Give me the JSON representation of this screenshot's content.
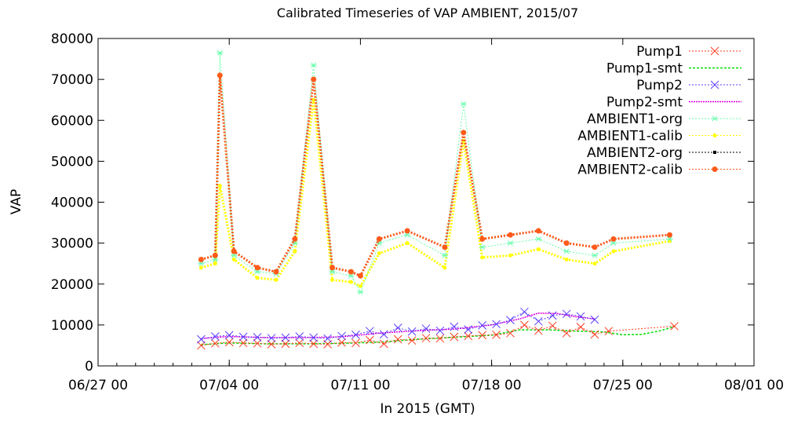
{
  "chart_data": {
    "type": "line",
    "title": "Calibrated Timeseries of VAP AMBIENT, 2015/07",
    "xlabel": "In 2015 (GMT)",
    "ylabel": "VAP",
    "x_range": [
      "2015-06-27 00:00",
      "2015-08-01 00:00"
    ],
    "ylim": [
      0,
      80000
    ],
    "x_ticks": [
      "06/27 00",
      "07/04 00",
      "07/11 00",
      "07/18 00",
      "07/25 00",
      "08/01 00"
    ],
    "y_ticks": [
      "0",
      "10000",
      "20000",
      "30000",
      "40000",
      "50000",
      "60000",
      "70000",
      "80000"
    ],
    "grid": false,
    "legend_position": "top-right",
    "colors": {
      "pump1": "#ff3a1f",
      "pump1_smt": "#00dd00",
      "pump2": "#5a3cff",
      "pump2_smt": "#e000e0",
      "ambient1_org": "#66ffaa",
      "ambient1_calib": "#ffff00",
      "ambient2_org": "#000000",
      "ambient2_calib": "#ff5a1a"
    },
    "series": [
      {
        "name": "Pump1",
        "x": [
          "2015-07-02 12:00",
          "2015-07-03 06:00",
          "2015-07-04 00:00",
          "2015-07-04 18:00",
          "2015-07-05 12:00",
          "2015-07-06 06:00",
          "2015-07-07 00:00",
          "2015-07-07 18:00",
          "2015-07-08 12:00",
          "2015-07-09 06:00",
          "2015-07-10 00:00",
          "2015-07-10 18:00",
          "2015-07-11 12:00",
          "2015-07-12 06:00",
          "2015-07-13 00:00",
          "2015-07-13 18:00",
          "2015-07-14 12:00",
          "2015-07-15 06:00",
          "2015-07-16 00:00",
          "2015-07-16 18:00",
          "2015-07-17 12:00",
          "2015-07-18 06:00",
          "2015-07-19 00:00",
          "2015-07-19 18:00",
          "2015-07-20 12:00",
          "2015-07-21 06:00",
          "2015-07-22 00:00",
          "2015-07-22 18:00",
          "2015-07-23 12:00",
          "2015-07-24 06:00",
          "2015-07-27 18:00"
        ],
        "y": [
          5000,
          5500,
          5800,
          5600,
          5500,
          5300,
          5400,
          5600,
          5400,
          5300,
          5700,
          5600,
          6300,
          5400,
          6500,
          6200,
          6800,
          6700,
          7100,
          7300,
          7500,
          7600,
          8000,
          10000,
          8600,
          9800,
          8000,
          9500,
          7700,
          8500,
          9700
        ]
      },
      {
        "name": "Pump1-smt",
        "x": [
          "2015-07-02 12:00",
          "2015-07-04 00:00",
          "2015-07-06 00:00",
          "2015-07-08 00:00",
          "2015-07-10 00:00",
          "2015-07-12 00:00",
          "2015-07-14 00:00",
          "2015-07-16 00:00",
          "2015-07-18 00:00",
          "2015-07-19 12:00",
          "2015-07-21 00:00",
          "2015-07-22 12:00",
          "2015-07-24 00:00",
          "2015-07-25 00:00",
          "2015-07-26 00:00",
          "2015-07-27 00:00",
          "2015-07-27 18:00"
        ],
        "y": [
          5200,
          5600,
          5400,
          5400,
          5500,
          5800,
          6500,
          7000,
          7500,
          8800,
          8800,
          8500,
          8300,
          7600,
          7700,
          8600,
          9600
        ]
      },
      {
        "name": "Pump2",
        "x": [
          "2015-07-02 12:00",
          "2015-07-03 06:00",
          "2015-07-04 00:00",
          "2015-07-04 18:00",
          "2015-07-05 12:00",
          "2015-07-06 06:00",
          "2015-07-07 00:00",
          "2015-07-07 18:00",
          "2015-07-08 12:00",
          "2015-07-09 06:00",
          "2015-07-10 00:00",
          "2015-07-10 18:00",
          "2015-07-11 12:00",
          "2015-07-12 06:00",
          "2015-07-13 00:00",
          "2015-07-13 18:00",
          "2015-07-14 12:00",
          "2015-07-15 06:00",
          "2015-07-16 00:00",
          "2015-07-16 18:00",
          "2015-07-17 12:00",
          "2015-07-18 06:00",
          "2015-07-19 00:00",
          "2015-07-19 18:00",
          "2015-07-20 12:00",
          "2015-07-21 06:00",
          "2015-07-22 00:00",
          "2015-07-22 18:00",
          "2015-07-23 12:00"
        ],
        "y": [
          6500,
          7200,
          7500,
          7100,
          7000,
          6800,
          6900,
          7200,
          6900,
          6700,
          7300,
          7600,
          8500,
          7700,
          9300,
          8400,
          9100,
          8600,
          9600,
          8900,
          9900,
          10200,
          11200,
          13200,
          10900,
          12300,
          12700,
          12100,
          11300
        ]
      },
      {
        "name": "Pump2-smt",
        "x": [
          "2015-07-02 12:00",
          "2015-07-04 00:00",
          "2015-07-06 00:00",
          "2015-07-08 00:00",
          "2015-07-10 00:00",
          "2015-07-12 00:00",
          "2015-07-14 00:00",
          "2015-07-16 00:00",
          "2015-07-18 00:00",
          "2015-07-19 12:00",
          "2015-07-20 12:00",
          "2015-07-21 12:00",
          "2015-07-22 12:00",
          "2015-07-23 12:00"
        ],
        "y": [
          6700,
          7200,
          6900,
          6900,
          7100,
          8000,
          8600,
          9000,
          10000,
          11500,
          12900,
          12800,
          12000,
          11500
        ]
      },
      {
        "name": "AMBIENT1-org",
        "x": [
          "2015-07-02 12:00",
          "2015-07-03 06:00",
          "2015-07-03 12:00",
          "2015-07-04 06:00",
          "2015-07-05 12:00",
          "2015-07-06 12:00",
          "2015-07-07 12:00",
          "2015-07-08 12:00",
          "2015-07-09 12:00",
          "2015-07-10 12:00",
          "2015-07-11 00:00",
          "2015-07-12 00:00",
          "2015-07-13 12:00",
          "2015-07-15 12:00",
          "2015-07-16 12:00",
          "2015-07-17 12:00",
          "2015-07-19 00:00",
          "2015-07-20 12:00",
          "2015-07-22 00:00",
          "2015-07-23 12:00",
          "2015-07-24 12:00",
          "2015-07-27 12:00"
        ],
        "y": [
          25000,
          26000,
          76500,
          27000,
          23000,
          22500,
          30000,
          73500,
          23000,
          22000,
          18000,
          30000,
          32000,
          27000,
          64000,
          29000,
          30000,
          31000,
          28000,
          27000,
          30000,
          31000
        ]
      },
      {
        "name": "AMBIENT1-calib",
        "x": [
          "2015-07-02 12:00",
          "2015-07-03 06:00",
          "2015-07-03 12:00",
          "2015-07-04 06:00",
          "2015-07-05 12:00",
          "2015-07-06 12:00",
          "2015-07-07 12:00",
          "2015-07-08 12:00",
          "2015-07-09 12:00",
          "2015-07-10 12:00",
          "2015-07-11 00:00",
          "2015-07-12 00:00",
          "2015-07-13 12:00",
          "2015-07-15 12:00",
          "2015-07-16 12:00",
          "2015-07-17 12:00",
          "2015-07-19 00:00",
          "2015-07-20 12:00",
          "2015-07-22 00:00",
          "2015-07-23 12:00",
          "2015-07-24 12:00",
          "2015-07-27 12:00"
        ],
        "y": [
          24000,
          25000,
          44000,
          26000,
          21500,
          21000,
          28000,
          65000,
          21000,
          20500,
          19500,
          27500,
          30000,
          24000,
          55000,
          26500,
          27000,
          28500,
          26000,
          25000,
          28000,
          30500
        ]
      },
      {
        "name": "AMBIENT2-org",
        "x": [
          "2015-07-02 12:00",
          "2015-07-03 06:00",
          "2015-07-03 12:00",
          "2015-07-04 06:00",
          "2015-07-05 12:00",
          "2015-07-06 12:00",
          "2015-07-07 12:00",
          "2015-07-08 12:00",
          "2015-07-09 12:00",
          "2015-07-10 12:00",
          "2015-07-11 00:00",
          "2015-07-12 00:00",
          "2015-07-13 12:00",
          "2015-07-15 12:00",
          "2015-07-16 12:00",
          "2015-07-17 12:00",
          "2015-07-19 00:00",
          "2015-07-20 12:00",
          "2015-07-22 00:00",
          "2015-07-23 12:00",
          "2015-07-24 12:00",
          "2015-07-27 12:00"
        ],
        "y": [
          26000,
          27000,
          71000,
          28000,
          24000,
          23000,
          31000,
          70000,
          24000,
          23000,
          22000,
          31000,
          33000,
          29000,
          57000,
          31000,
          32000,
          33000,
          30000,
          29000,
          31000,
          32000
        ]
      },
      {
        "name": "AMBIENT2-calib",
        "x": [
          "2015-07-02 12:00",
          "2015-07-03 06:00",
          "2015-07-03 12:00",
          "2015-07-04 06:00",
          "2015-07-05 12:00",
          "2015-07-06 12:00",
          "2015-07-07 12:00",
          "2015-07-08 12:00",
          "2015-07-09 12:00",
          "2015-07-10 12:00",
          "2015-07-11 00:00",
          "2015-07-12 00:00",
          "2015-07-13 12:00",
          "2015-07-15 12:00",
          "2015-07-16 12:00",
          "2015-07-17 12:00",
          "2015-07-19 00:00",
          "2015-07-20 12:00",
          "2015-07-22 00:00",
          "2015-07-23 12:00",
          "2015-07-24 12:00",
          "2015-07-27 12:00"
        ],
        "y": [
          26000,
          27000,
          71000,
          28000,
          24000,
          23000,
          31000,
          70000,
          24000,
          23000,
          22000,
          31000,
          33000,
          29000,
          57000,
          31000,
          32000,
          33000,
          30000,
          29000,
          31000,
          32000
        ]
      }
    ]
  }
}
